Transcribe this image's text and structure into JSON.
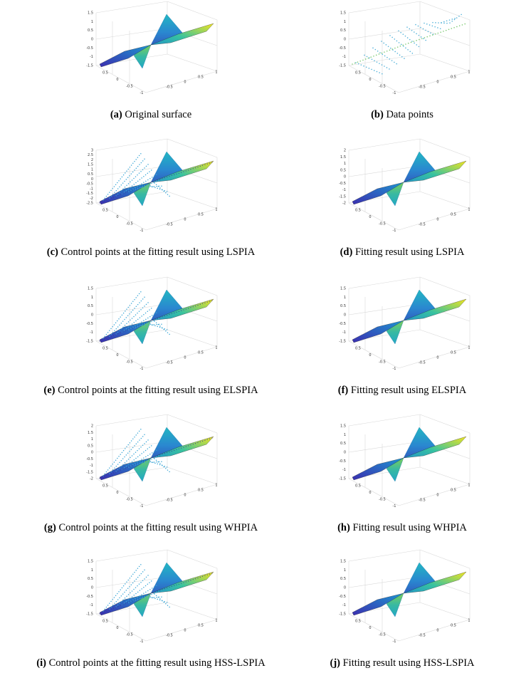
{
  "panels": [
    {
      "label": "(a)",
      "caption": "Original surface",
      "z_ticks": [
        1.5,
        1,
        0.5,
        0,
        -0.5,
        -1,
        -1.5
      ],
      "x_ticks": [
        0.5,
        0,
        -0.5,
        -1
      ],
      "y_ticks": [
        -0.5,
        0,
        0.5,
        1
      ]
    },
    {
      "label": "(b)",
      "caption": "Data points",
      "z_ticks": [
        1.5,
        1,
        0.5,
        0,
        -0.5,
        -1,
        -1.5
      ],
      "x_ticks": [
        0.5,
        0,
        -0.5,
        -1
      ],
      "y_ticks": [
        -0.5,
        0,
        0.5,
        1
      ]
    },
    {
      "label": "(c)",
      "caption": "Control points at the fitting result using LSPIA",
      "z_ticks": [
        3,
        2.5,
        2,
        1.5,
        1,
        0.5,
        0,
        -0.5,
        -1,
        -1.5,
        -2,
        -2.5
      ],
      "x_ticks": [
        0.5,
        0,
        -0.5,
        -1
      ],
      "y_ticks": [
        -0.5,
        0,
        0.5,
        1
      ]
    },
    {
      "label": "(d)",
      "caption": "Fitting result using LSPIA",
      "z_ticks": [
        2,
        1.5,
        1,
        0.5,
        0,
        -0.5,
        -1,
        -1.5,
        -2
      ],
      "x_ticks": [
        0.5,
        0,
        -0.5,
        -1
      ],
      "y_ticks": [
        -0.5,
        0,
        0.5,
        1
      ]
    },
    {
      "label": "(e)",
      "caption": "Control points at the fitting result using ELSPIA",
      "z_ticks": [
        1.5,
        1,
        0.5,
        0,
        -0.5,
        -1,
        -1.5
      ],
      "x_ticks": [
        0.5,
        0,
        -0.5,
        -1
      ],
      "y_ticks": [
        -0.5,
        0,
        0.5,
        1
      ]
    },
    {
      "label": "(f)",
      "caption": "Fitting result using ELSPIA",
      "z_ticks": [
        1.5,
        1,
        0.5,
        0,
        -0.5,
        -1,
        -1.5
      ],
      "x_ticks": [
        0.5,
        0,
        -0.5,
        -1
      ],
      "y_ticks": [
        -0.5,
        0,
        0.5,
        1
      ]
    },
    {
      "label": "(g)",
      "caption": "Control points at the fitting result using WHPIA",
      "z_ticks": [
        2,
        1.5,
        1,
        0.5,
        0,
        -0.5,
        -1,
        -1.5,
        -2
      ],
      "x_ticks": [
        0.5,
        0,
        -0.5,
        -1
      ],
      "y_ticks": [
        -0.5,
        0,
        0.5,
        1
      ]
    },
    {
      "label": "(h)",
      "caption": "Fitting result using WHPIA",
      "z_ticks": [
        1.5,
        1,
        0.5,
        0,
        -0.5,
        -1,
        -1.5
      ],
      "x_ticks": [
        0.5,
        0,
        -0.5,
        -1
      ],
      "y_ticks": [
        -0.5,
        0,
        0.5,
        1
      ]
    },
    {
      "label": "(i)",
      "caption": "Control points at the fitting result using HSS-LSPIA",
      "z_ticks": [
        1.5,
        1,
        0.5,
        0,
        -0.5,
        -1,
        -1.5
      ],
      "x_ticks": [
        0.5,
        0,
        -0.5,
        -1
      ],
      "y_ticks": [
        -0.5,
        0,
        0.5,
        1
      ]
    },
    {
      "label": "(j)",
      "caption": "Fitting result using HSS-LSPIA",
      "z_ticks": [
        1.5,
        1,
        0.5,
        0,
        -0.5,
        -1,
        -1.5
      ],
      "x_ticks": [
        0.5,
        0,
        -0.5,
        -1
      ],
      "y_ticks": [
        -0.5,
        0,
        0.5,
        1
      ]
    }
  ]
}
